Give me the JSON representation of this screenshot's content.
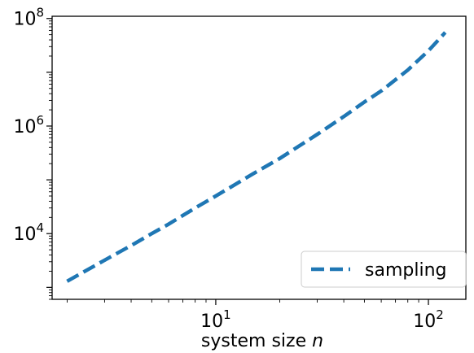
{
  "chart_data": {
    "type": "line",
    "xlabel_main": "system size ",
    "xlabel_var": "n",
    "xscale": "log",
    "yscale": "log",
    "xlim": [
      1.7,
      150
    ],
    "ylim": [
      600,
      110000000
    ],
    "grid": false,
    "legend_placement": "lower-right",
    "x_ticks": [
      {
        "base": "10",
        "exp": "1",
        "value": 10
      },
      {
        "base": "10",
        "exp": "2",
        "value": 100
      }
    ],
    "y_ticks": [
      {
        "base": "10",
        "exp": "4",
        "value": 10000
      },
      {
        "base": "10",
        "exp": "6",
        "value": 1000000
      },
      {
        "base": "10",
        "exp": "8",
        "value": 100000000
      }
    ],
    "series": [
      {
        "name": "sampling",
        "color": "#1f77b4",
        "linestyle": "dashed",
        "x": [
          2,
          3,
          4,
          5,
          6,
          8,
          10,
          15,
          20,
          30,
          40,
          50,
          60,
          80,
          100,
          120
        ],
        "y": [
          1300,
          3200,
          6000,
          10000,
          15000,
          30000,
          50000,
          130000,
          250000,
          700000,
          1500000,
          2800000,
          4500000,
          11000000,
          25000000,
          55000000
        ]
      }
    ]
  }
}
